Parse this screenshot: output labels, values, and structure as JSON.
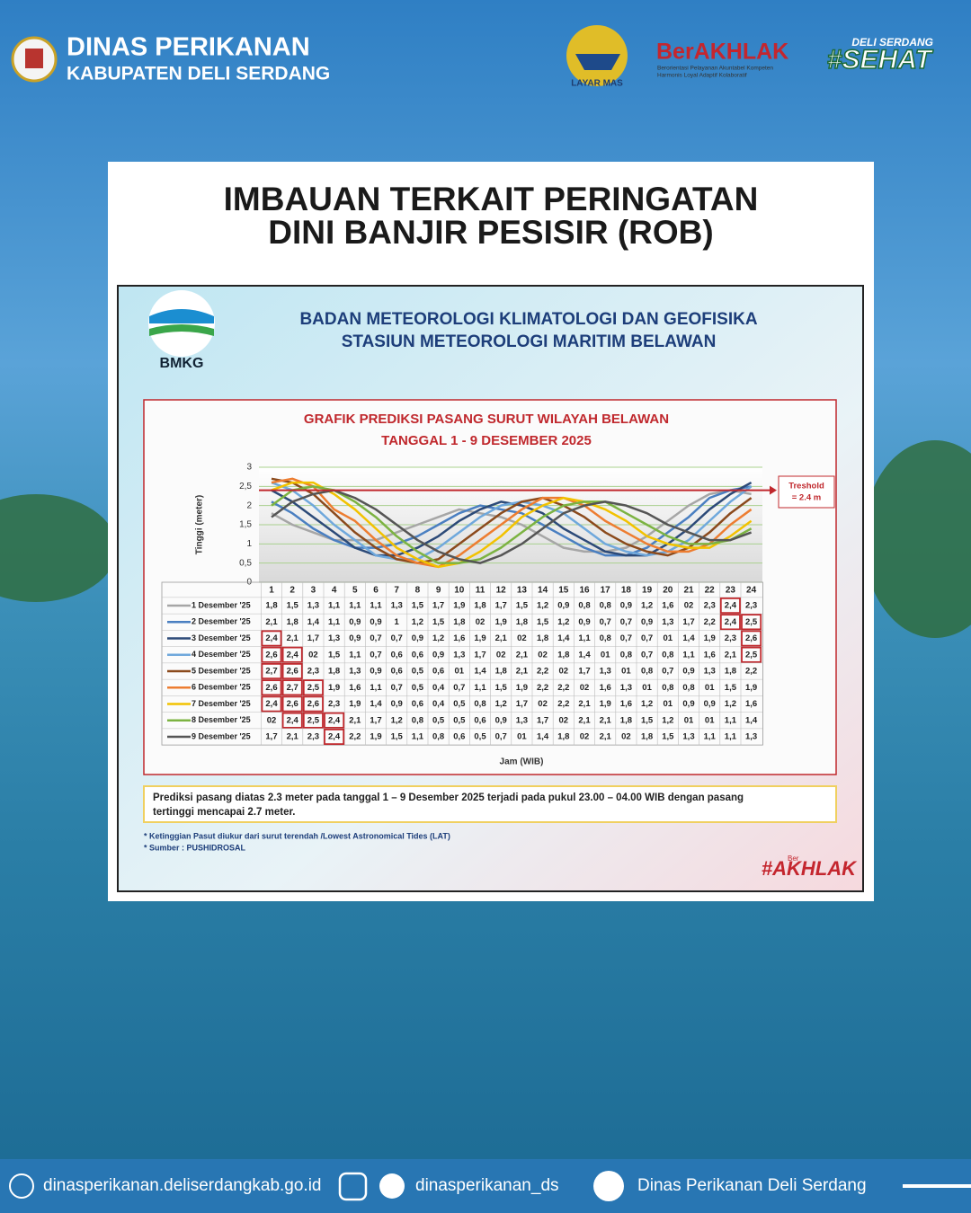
{
  "header": {
    "title": "DINAS PERIKANAN",
    "subtitle": "KABUPATEN DELI SERDANG",
    "layar_mas": "LAYAR MAS",
    "berakhlak": "BerAKHLAK",
    "berakhlak_tagline": [
      "Berorientasi Pelayanan Akuntabel Kompeten",
      "Harmonis Loyal Adaptif Kolaboratif"
    ],
    "sehat_top": "DELI SERDANG",
    "sehat": "#SEHAT"
  },
  "card": {
    "title": [
      "IMBAUAN TERKAIT PERINGATAN",
      "DINI BANJIR PESISIR (ROB)"
    ]
  },
  "bmkg": {
    "logo": "BMKG",
    "heading": [
      "BADAN METEOROLOGI KLIMATOLOGI DAN GEOFISIKA",
      "STASIUN METEOROLOGI MARITIM BELAWAN"
    ]
  },
  "chart_data": {
    "type": "line",
    "title": [
      "GRAFIK PREDIKSI PASANG SURUT WILAYAH BELAWAN",
      "TANGGAL 1 - 9 DESEMBER 2025"
    ],
    "ylabel": "Tinggi (meter)",
    "xlabel": "Jam (WIB)",
    "categories": [
      "1",
      "2",
      "3",
      "4",
      "5",
      "6",
      "7",
      "8",
      "9",
      "10",
      "11",
      "12",
      "13",
      "14",
      "15",
      "16",
      "17",
      "18",
      "19",
      "20",
      "21",
      "22",
      "23",
      "24"
    ],
    "ylim": [
      0,
      3
    ],
    "yticks": [
      0,
      {
        "value": 0.5,
        "label": "0,5"
      },
      1,
      {
        "value": 1.5,
        "label": "1,5"
      },
      2,
      {
        "value": 2.5,
        "label": "2,5"
      },
      3
    ],
    "threshold": 2.4,
    "threshold_label": [
      "Treshold",
      "= 2.4 m"
    ],
    "threshold_color": "#c0282d",
    "series": [
      {
        "name": "1 Desember '25",
        "color": "#a6a6a6",
        "values": [
          1.8,
          1.5,
          1.3,
          1.1,
          1.1,
          1.1,
          1.3,
          1.5,
          1.7,
          1.9,
          1.8,
          1.7,
          1.5,
          1.2,
          0.9,
          0.8,
          0.8,
          0.9,
          1.2,
          1.6,
          2,
          2.3,
          2.4,
          2.3
        ],
        "value_labels": [
          "1,8",
          "1,5",
          "1,3",
          "1,1",
          "1,1",
          "1,1",
          "1,3",
          "1,5",
          "1,7",
          "1,9",
          "1,8",
          "1,7",
          "1,5",
          "1,2",
          "0,9",
          "0,8",
          "0,8",
          "0,9",
          "1,2",
          "1,6",
          "02",
          "2,3",
          "2,4",
          "2,3"
        ]
      },
      {
        "name": "2 Desember '25",
        "color": "#4a7fc1",
        "values": [
          2.1,
          1.8,
          1.4,
          1.1,
          0.9,
          0.9,
          1,
          1.2,
          1.5,
          1.8,
          2,
          1.9,
          1.8,
          1.5,
          1.2,
          0.9,
          0.7,
          0.7,
          0.9,
          1.3,
          1.7,
          2.2,
          2.4,
          2.5
        ],
        "value_labels": [
          "2,1",
          "1,8",
          "1,4",
          "1,1",
          "0,9",
          "0,9",
          "1",
          "1,2",
          "1,5",
          "1,8",
          "02",
          "1,9",
          "1,8",
          "1,5",
          "1,2",
          "0,9",
          "0,7",
          "0,7",
          "0,9",
          "1,3",
          "1,7",
          "2,2",
          "2,4",
          "2,5"
        ]
      },
      {
        "name": "3 Desember '25",
        "color": "#2c4a78",
        "values": [
          2.4,
          2.1,
          1.7,
          1.3,
          0.9,
          0.7,
          0.7,
          0.9,
          1.2,
          1.6,
          1.9,
          2.1,
          2,
          1.8,
          1.4,
          1.1,
          0.8,
          0.7,
          0.7,
          1,
          1.4,
          1.9,
          2.3,
          2.6
        ],
        "value_labels": [
          "2,4",
          "2,1",
          "1,7",
          "1,3",
          "0,9",
          "0,7",
          "0,7",
          "0,9",
          "1,2",
          "1,6",
          "1,9",
          "2,1",
          "02",
          "1,8",
          "1,4",
          "1,1",
          "0,8",
          "0,7",
          "0,7",
          "01",
          "1,4",
          "1,9",
          "2,3",
          "2,6"
        ]
      },
      {
        "name": "4 Desember '25",
        "color": "#6fa8dc",
        "values": [
          2.6,
          2.4,
          2,
          1.5,
          1.1,
          0.7,
          0.6,
          0.6,
          0.9,
          1.3,
          1.7,
          2,
          2.1,
          2,
          1.8,
          1.4,
          1,
          0.8,
          0.7,
          0.8,
          1.1,
          1.6,
          2.1,
          2.5
        ],
        "value_labels": [
          "2,6",
          "2,4",
          "02",
          "1,5",
          "1,1",
          "0,7",
          "0,6",
          "0,6",
          "0,9",
          "1,3",
          "1,7",
          "02",
          "2,1",
          "02",
          "1,8",
          "1,4",
          "01",
          "0,8",
          "0,7",
          "0,8",
          "1,1",
          "1,6",
          "2,1",
          "2,5"
        ]
      },
      {
        "name": "5 Desember '25",
        "color": "#8b4a1c",
        "values": [
          2.7,
          2.6,
          2.3,
          1.8,
          1.3,
          0.9,
          0.6,
          0.5,
          0.6,
          1,
          1.4,
          1.8,
          2.1,
          2.2,
          2,
          1.7,
          1.3,
          1,
          0.8,
          0.7,
          0.9,
          1.3,
          1.8,
          2.2
        ],
        "value_labels": [
          "2,7",
          "2,6",
          "2,3",
          "1,8",
          "1,3",
          "0,9",
          "0,6",
          "0,5",
          "0,6",
          "01",
          "1,4",
          "1,8",
          "2,1",
          "2,2",
          "02",
          "1,7",
          "1,3",
          "01",
          "0,8",
          "0,7",
          "0,9",
          "1,3",
          "1,8",
          "2,2"
        ]
      },
      {
        "name": "6 Desember '25",
        "color": "#ed7d31",
        "values": [
          2.6,
          2.7,
          2.5,
          1.9,
          1.6,
          1.1,
          0.7,
          0.5,
          0.4,
          0.7,
          1.1,
          1.5,
          1.9,
          2.2,
          2.2,
          2,
          1.6,
          1.3,
          1,
          0.8,
          0.8,
          1,
          1.5,
          1.9
        ],
        "value_labels": [
          "2,6",
          "2,7",
          "2,5",
          "1,9",
          "1,6",
          "1,1",
          "0,7",
          "0,5",
          "0,4",
          "0,7",
          "1,1",
          "1,5",
          "1,9",
          "2,2",
          "2,2",
          "02",
          "1,6",
          "1,3",
          "01",
          "0,8",
          "0,8",
          "01",
          "1,5",
          "1,9"
        ]
      },
      {
        "name": "7 Desember '25",
        "color": "#f2c200",
        "values": [
          2.4,
          2.6,
          2.6,
          2.3,
          1.9,
          1.4,
          0.9,
          0.6,
          0.4,
          0.5,
          0.8,
          1.2,
          1.7,
          2,
          2.2,
          2.1,
          1.9,
          1.6,
          1.2,
          1,
          0.9,
          0.9,
          1.2,
          1.6
        ],
        "value_labels": [
          "2,4",
          "2,6",
          "2,6",
          "2,3",
          "1,9",
          "1,4",
          "0,9",
          "0,6",
          "0,4",
          "0,5",
          "0,8",
          "1,2",
          "1,7",
          "02",
          "2,2",
          "2,1",
          "1,9",
          "1,6",
          "1,2",
          "01",
          "0,9",
          "0,9",
          "1,2",
          "1,6"
        ]
      },
      {
        "name": "8 Desember '25",
        "color": "#7cb342",
        "values": [
          2,
          2.4,
          2.5,
          2.4,
          2.1,
          1.7,
          1.2,
          0.8,
          0.5,
          0.5,
          0.6,
          0.9,
          1.3,
          1.7,
          2,
          2.1,
          2.1,
          1.8,
          1.5,
          1.2,
          1,
          1,
          1.1,
          1.4
        ],
        "value_labels": [
          "02",
          "2,4",
          "2,5",
          "2,4",
          "2,1",
          "1,7",
          "1,2",
          "0,8",
          "0,5",
          "0,5",
          "0,6",
          "0,9",
          "1,3",
          "1,7",
          "02",
          "2,1",
          "2,1",
          "1,8",
          "1,5",
          "1,2",
          "01",
          "01",
          "1,1",
          "1,4"
        ]
      },
      {
        "name": "9 Desember '25",
        "color": "#555555",
        "values": [
          1.7,
          2.1,
          2.3,
          2.4,
          2.2,
          1.9,
          1.5,
          1.1,
          0.8,
          0.6,
          0.5,
          0.7,
          1,
          1.4,
          1.8,
          2,
          2.1,
          2,
          1.8,
          1.5,
          1.3,
          1.1,
          1.1,
          1.3
        ],
        "value_labels": [
          "1,7",
          "2,1",
          "2,3",
          "2,4",
          "2,2",
          "1,9",
          "1,5",
          "1,1",
          "0,8",
          "0,6",
          "0,5",
          "0,7",
          "01",
          "1,4",
          "1,8",
          "02",
          "2,1",
          "02",
          "1,8",
          "1,5",
          "1,3",
          "1,1",
          "1,1",
          "1,3"
        ]
      }
    ]
  },
  "note": [
    "Prediksi pasang diatas 2.3 meter pada tanggal 1 – 9 Desember 2025 terjadi pada pukul 23.00 – 04.00 WIB  dengan pasang",
    "tertinggi mencapai 2.7 meter."
  ],
  "footnotes": [
    "* Ketinggian Pasut diukur dari surut terendah /Lowest Astronomical Tides (LAT)",
    "* Sumber : PUSHIDROSAL"
  ],
  "badge": {
    "small": "Ber",
    "text": "#AKHLAK"
  },
  "footer": {
    "website": "dinasperikanan.deliserdangkab.go.id",
    "social": "dinasperikanan_ds",
    "facebook": "Dinas Perikanan Deli Serdang"
  }
}
